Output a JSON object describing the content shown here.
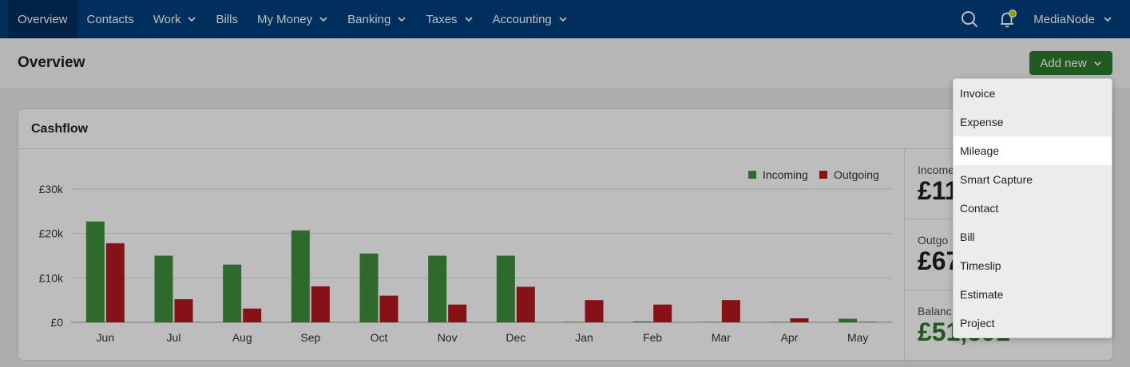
{
  "nav": {
    "items": [
      {
        "label": "Overview",
        "active": true,
        "dropdown": false
      },
      {
        "label": "Contacts",
        "active": false,
        "dropdown": false
      },
      {
        "label": "Work",
        "active": false,
        "dropdown": true
      },
      {
        "label": "Bills",
        "active": false,
        "dropdown": false
      },
      {
        "label": "My Money",
        "active": false,
        "dropdown": true
      },
      {
        "label": "Banking",
        "active": false,
        "dropdown": true
      },
      {
        "label": "Taxes",
        "active": false,
        "dropdown": true
      },
      {
        "label": "Accounting",
        "active": false,
        "dropdown": true
      }
    ],
    "account": "MediaNode",
    "icons": [
      "search-icon",
      "notification-bell-icon"
    ]
  },
  "page": {
    "title": "Overview",
    "add_new_label": "Add new"
  },
  "card": {
    "title": "Cashflow"
  },
  "stats": [
    {
      "label": "Income",
      "value": "£11"
    },
    {
      "label": "Outgo",
      "value": "£67"
    },
    {
      "label": "Balanc",
      "value": "£51,591"
    }
  ],
  "menu": {
    "items": [
      "Invoice",
      "Expense",
      "Mileage",
      "Smart Capture",
      "Contact",
      "Bill",
      "Timeslip",
      "Estimate",
      "Project"
    ],
    "highlighted": "Mileage"
  },
  "colors": {
    "nav_bg": "#00407e",
    "incoming": "#3f8f3c",
    "outgoing": "#b5181f",
    "add_button": "#2f7a2d"
  },
  "chart_data": {
    "type": "bar",
    "categories": [
      "Jun",
      "Jul",
      "Aug",
      "Sep",
      "Oct",
      "Nov",
      "Dec",
      "Jan",
      "Feb",
      "Mar",
      "Apr",
      "May"
    ],
    "series": [
      {
        "name": "Incoming",
        "values": [
          22700,
          15000,
          13000,
          20700,
          15500,
          15000,
          15000,
          100,
          200,
          100,
          100,
          800
        ]
      },
      {
        "name": "Outgoing",
        "values": [
          17800,
          5200,
          3100,
          8100,
          6000,
          4000,
          8000,
          5000,
          4000,
          5000,
          900,
          100
        ]
      }
    ],
    "yticks": [
      "£0",
      "£10k",
      "£20k",
      "£30k"
    ],
    "ylim": [
      0,
      30000
    ],
    "legend": "top-right",
    "grid": true
  }
}
